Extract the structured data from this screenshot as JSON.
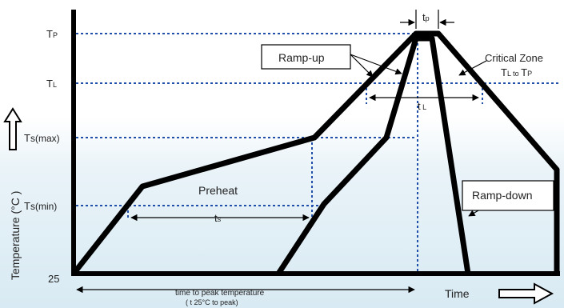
{
  "y_axis": {
    "title": "Temperature (°C )",
    "ticks": {
      "tp": {
        "main": "T",
        "sub": "P"
      },
      "tl": {
        "main": "T",
        "sub": "L"
      },
      "tsmax": {
        "main": "T",
        "sub": "s(max)"
      },
      "tsmin": {
        "main": "T",
        "sub": "s(min)"
      },
      "t25": "25"
    }
  },
  "x_axis": {
    "title": "Time"
  },
  "labels": {
    "tp_width": {
      "main": "t",
      "sub": "p"
    },
    "tl_width": {
      "main": "t",
      "sub": " L"
    },
    "ts_width": {
      "main": "t",
      "sub": "s"
    },
    "ramp_up": "Ramp-up",
    "ramp_down": "Ramp-down",
    "preheat": "Preheat",
    "critical_zone": "Critical Zone",
    "critical_sub": {
      "a": "T",
      "b": "L to ",
      "c": "T",
      "d": "P"
    },
    "peak_time_line1": "time to peak temperature",
    "peak_time_line2": "( t 25°C to peak)"
  },
  "colors": {
    "guide": "#1f4fa8",
    "profile": "#000000"
  }
}
